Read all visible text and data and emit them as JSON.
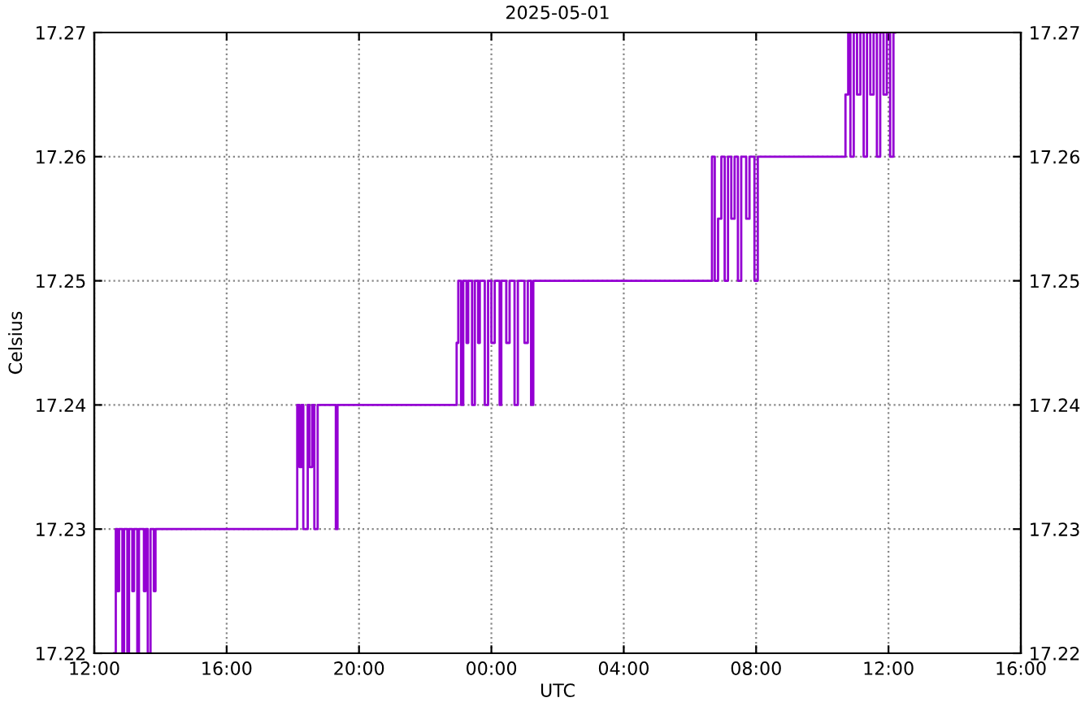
{
  "chart_data": {
    "type": "step",
    "title": "2025-05-01",
    "xlabel": "UTC",
    "ylabel": "Celsius",
    "xlim": [
      "2025-05-01T12:00",
      "2025-05-02T16:00"
    ],
    "xticks": [
      {
        "value": "2025-05-01T12:00",
        "label": "12:00"
      },
      {
        "value": "2025-05-01T16:00",
        "label": "16:00"
      },
      {
        "value": "2025-05-01T20:00",
        "label": "20:00"
      },
      {
        "value": "2025-05-02T00:00",
        "label": "00:00"
      },
      {
        "value": "2025-05-02T04:00",
        "label": "04:00"
      },
      {
        "value": "2025-05-02T08:00",
        "label": "08:00"
      },
      {
        "value": "2025-05-02T12:00",
        "label": "12:00"
      },
      {
        "value": "2025-05-02T16:00",
        "label": "16:00"
      }
    ],
    "ylim": [
      17.22,
      17.27
    ],
    "yticks": [
      17.22,
      17.23,
      17.24,
      17.25,
      17.26,
      17.27
    ],
    "y2lim": [
      17.22,
      17.27
    ],
    "y2ticks": [
      17.22,
      17.23,
      17.24,
      17.25,
      17.26,
      17.27
    ],
    "grid": true,
    "marker": "none",
    "line_style": "solid",
    "series": [
      {
        "color": "#9400d3",
        "x": [
          "2025-05-01T12:36",
          "2025-05-01T12:39",
          "2025-05-01T12:42",
          "2025-05-01T12:45",
          "2025-05-01T12:51",
          "2025-05-01T12:54",
          "2025-05-01T13:00",
          "2025-05-01T13:03",
          "2025-05-01T13:09",
          "2025-05-01T13:12",
          "2025-05-01T13:18",
          "2025-05-01T13:21",
          "2025-05-01T13:30",
          "2025-05-01T13:33",
          "2025-05-01T13:37",
          "2025-05-01T13:42",
          "2025-05-01T13:48",
          "2025-05-01T13:51",
          "2025-05-01T18:08",
          "2025-05-01T18:12",
          "2025-05-01T18:16",
          "2025-05-01T18:19",
          "2025-05-01T18:27",
          "2025-05-01T18:30",
          "2025-05-01T18:35",
          "2025-05-01T18:39",
          "2025-05-01T18:45",
          "2025-05-01T18:48",
          "2025-05-01T19:18",
          "2025-05-01T19:21",
          "2025-05-01T22:57",
          "2025-05-01T23:00",
          "2025-05-01T23:05",
          "2025-05-01T23:09",
          "2025-05-01T23:15",
          "2025-05-01T23:18",
          "2025-05-01T23:25",
          "2025-05-01T23:30",
          "2025-05-01T23:36",
          "2025-05-01T23:39",
          "2025-05-01T23:48",
          "2025-05-01T23:54",
          "2025-05-02T00:00",
          "2025-05-02T00:06",
          "2025-05-02T00:15",
          "2025-05-02T00:18",
          "2025-05-02T00:27",
          "2025-05-02T00:33",
          "2025-05-02T00:42",
          "2025-05-02T00:48",
          "2025-05-02T01:00",
          "2025-05-02T01:06",
          "2025-05-02T01:12",
          "2025-05-02T01:16",
          "2025-05-02T06:40",
          "2025-05-02T06:45",
          "2025-05-02T06:51",
          "2025-05-02T06:57",
          "2025-05-02T07:03",
          "2025-05-02T07:09",
          "2025-05-02T07:15",
          "2025-05-02T07:21",
          "2025-05-02T07:27",
          "2025-05-02T07:33",
          "2025-05-02T07:42",
          "2025-05-02T07:48",
          "2025-05-02T07:57",
          "2025-05-02T08:03",
          "2025-05-02T10:42",
          "2025-05-02T10:47",
          "2025-05-02T10:51",
          "2025-05-02T10:57",
          "2025-05-02T11:03",
          "2025-05-02T11:09",
          "2025-05-02T11:15",
          "2025-05-02T11:21",
          "2025-05-02T11:27",
          "2025-05-02T11:33",
          "2025-05-02T11:39",
          "2025-05-02T11:45",
          "2025-05-02T11:51",
          "2025-05-02T11:57",
          "2025-05-02T12:03",
          "2025-05-02T12:09",
          "2025-05-02T12:12"
        ],
        "values": [
          17.22,
          17.23,
          17.225,
          17.23,
          17.22,
          17.23,
          17.22,
          17.23,
          17.225,
          17.23,
          17.22,
          17.23,
          17.225,
          17.23,
          17.22,
          17.23,
          17.225,
          17.23,
          17.24,
          17.235,
          17.24,
          17.23,
          17.24,
          17.235,
          17.24,
          17.23,
          17.24,
          17.24,
          17.23,
          17.24,
          17.245,
          17.25,
          17.24,
          17.25,
          17.245,
          17.25,
          17.24,
          17.25,
          17.245,
          17.25,
          17.24,
          17.25,
          17.245,
          17.25,
          17.24,
          17.25,
          17.245,
          17.25,
          17.24,
          17.25,
          17.245,
          17.25,
          17.24,
          17.25,
          17.26,
          17.25,
          17.255,
          17.26,
          17.25,
          17.26,
          17.255,
          17.26,
          17.25,
          17.26,
          17.255,
          17.26,
          17.25,
          17.26,
          17.265,
          17.27,
          17.26,
          17.27,
          17.265,
          17.27,
          17.26,
          17.27,
          17.265,
          17.27,
          17.26,
          17.27,
          17.265,
          17.27,
          17.26,
          17.27,
          17.27
        ]
      }
    ]
  }
}
